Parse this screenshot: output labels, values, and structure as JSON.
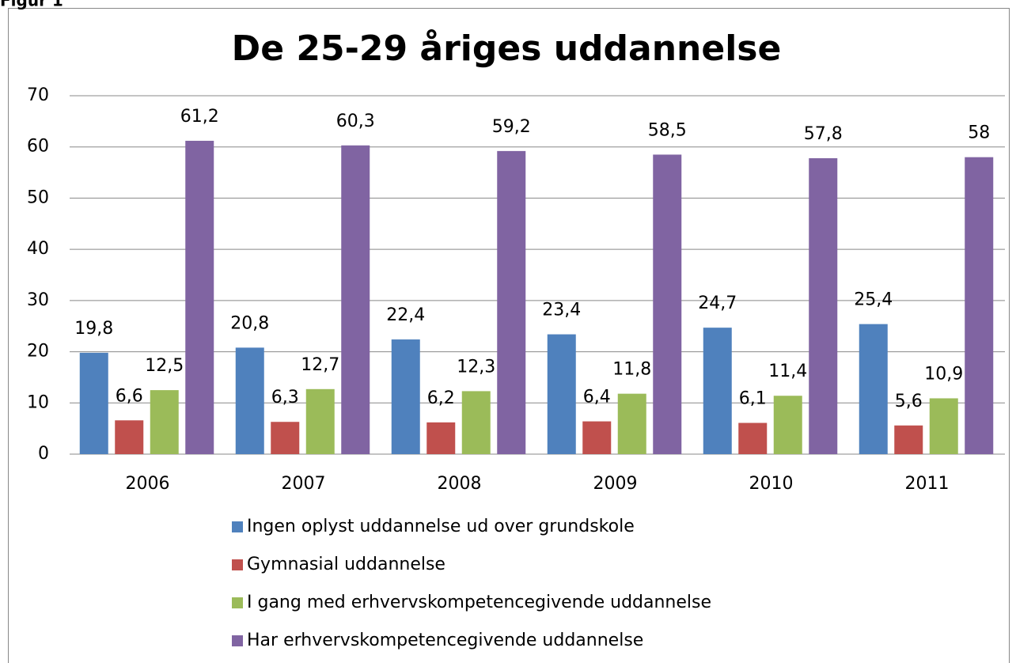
{
  "figure_label": "Figur 1",
  "chart_data": {
    "type": "bar",
    "title": "De 25-29 åriges uddannelse",
    "categories": [
      "2006",
      "2007",
      "2008",
      "2009",
      "2010",
      "2011"
    ],
    "series": [
      {
        "name": "Ingen oplyst uddannelse ud over grundskole",
        "color": "#4f81bd",
        "values": [
          19.8,
          20.8,
          22.4,
          23.4,
          24.7,
          25.4
        ],
        "value_labels": [
          "19,8",
          "20,8",
          "22,4",
          "23,4",
          "24,7",
          "25,4"
        ]
      },
      {
        "name": "Gymnasial uddannelse",
        "color": "#c0504d",
        "values": [
          6.6,
          6.3,
          6.2,
          6.4,
          6.1,
          5.6
        ],
        "value_labels": [
          "6,6",
          "6,3",
          "6,2",
          "6,4",
          "6,1",
          "5,6"
        ]
      },
      {
        "name": "I gang med erhvervskompetencegivende uddannelse",
        "color": "#9bbb59",
        "values": [
          12.5,
          12.7,
          12.3,
          11.8,
          11.4,
          10.9
        ],
        "value_labels": [
          "12,5",
          "12,7",
          "12,3",
          "11,8",
          "11,4",
          "10,9"
        ]
      },
      {
        "name": "Har erhvervskompetencegivende uddannelse",
        "color": "#8064a2",
        "values": [
          61.2,
          60.3,
          59.2,
          58.5,
          57.8,
          58
        ],
        "value_labels": [
          "61,2",
          "60,3",
          "59,2",
          "58,5",
          "57,8",
          "58"
        ]
      }
    ],
    "ylim": [
      0,
      70
    ],
    "yticks": [
      0,
      10,
      20,
      30,
      40,
      50,
      60,
      70
    ],
    "grid": true,
    "legend": "bottom"
  }
}
